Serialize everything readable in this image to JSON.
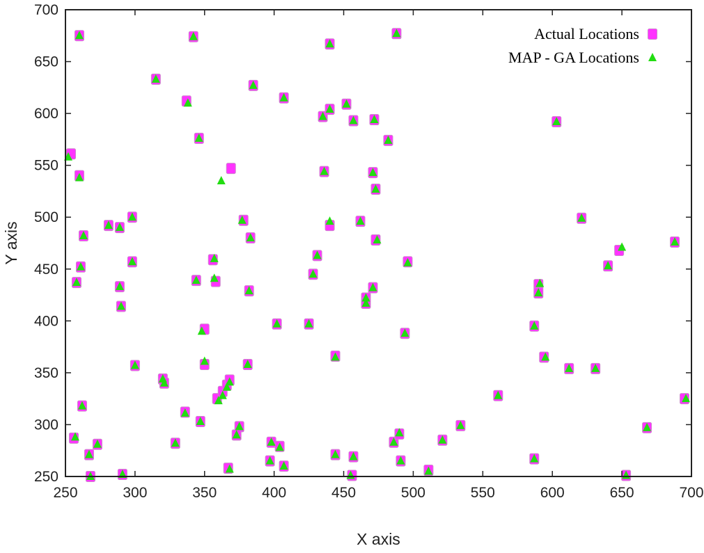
{
  "chart_data": {
    "type": "scatter",
    "xlabel": "X axis",
    "ylabel": "Y axis",
    "xlim": [
      250,
      700
    ],
    "ylim": [
      250,
      700
    ],
    "xticks": [
      250,
      300,
      350,
      400,
      450,
      500,
      550,
      600,
      650,
      700
    ],
    "yticks": [
      250,
      300,
      350,
      400,
      450,
      500,
      550,
      600,
      650,
      700
    ],
    "grid": false,
    "legend_position": "top-right",
    "series": [
      {
        "name": "Actual Locations",
        "marker": "square",
        "color": "#ff33ff",
        "points": [
          [
            260,
            675
          ],
          [
            342,
            674
          ],
          [
            315,
            633
          ],
          [
            337,
            612
          ],
          [
            346,
            576
          ],
          [
            254,
            561
          ],
          [
            260,
            540
          ],
          [
            263,
            482
          ],
          [
            261,
            452
          ],
          [
            258,
            437
          ],
          [
            281,
            492
          ],
          [
            289,
            490
          ],
          [
            298,
            500
          ],
          [
            298,
            457
          ],
          [
            289,
            433
          ],
          [
            290,
            414
          ],
          [
            300,
            357
          ],
          [
            320,
            344
          ],
          [
            321,
            340
          ],
          [
            336,
            312
          ],
          [
            329,
            282
          ],
          [
            347,
            303
          ],
          [
            344,
            439
          ],
          [
            356,
            459
          ],
          [
            358,
            438
          ],
          [
            350,
            392
          ],
          [
            350,
            358
          ],
          [
            359,
            325
          ],
          [
            363,
            332
          ],
          [
            366,
            338
          ],
          [
            368,
            343
          ],
          [
            369,
            547
          ],
          [
            385,
            627
          ],
          [
            378,
            497
          ],
          [
            383,
            480
          ],
          [
            382,
            429
          ],
          [
            381,
            358
          ],
          [
            375,
            298
          ],
          [
            373,
            290
          ],
          [
            367,
            258
          ],
          [
            398,
            283
          ],
          [
            404,
            279
          ],
          [
            407,
            260
          ],
          [
            397,
            265
          ],
          [
            402,
            397
          ],
          [
            407,
            615
          ],
          [
            425,
            397
          ],
          [
            428,
            445
          ],
          [
            431,
            463
          ],
          [
            436,
            544
          ],
          [
            435,
            597
          ],
          [
            440,
            604
          ],
          [
            440,
            667
          ],
          [
            440,
            492
          ],
          [
            452,
            609
          ],
          [
            457,
            593
          ],
          [
            462,
            496
          ],
          [
            466,
            422
          ],
          [
            466,
            417
          ],
          [
            471,
            432
          ],
          [
            472,
            594
          ],
          [
            471,
            543
          ],
          [
            473,
            527
          ],
          [
            473,
            478
          ],
          [
            482,
            574
          ],
          [
            488,
            677
          ],
          [
            444,
            366
          ],
          [
            444,
            271
          ],
          [
            457,
            269
          ],
          [
            456,
            251
          ],
          [
            486,
            283
          ],
          [
            490,
            291
          ],
          [
            491,
            265
          ],
          [
            494,
            388
          ],
          [
            496,
            457
          ],
          [
            511,
            256
          ],
          [
            521,
            285
          ],
          [
            534,
            299
          ],
          [
            561,
            328
          ],
          [
            587,
            395
          ],
          [
            587,
            267
          ],
          [
            590,
            435
          ],
          [
            590,
            427
          ],
          [
            594,
            365
          ],
          [
            603,
            592
          ],
          [
            612,
            354
          ],
          [
            621,
            499
          ],
          [
            631,
            354
          ],
          [
            640,
            453
          ],
          [
            648,
            468
          ],
          [
            653,
            251
          ],
          [
            668,
            297
          ],
          [
            688,
            476
          ],
          [
            695,
            325
          ],
          [
            256,
            287
          ],
          [
            262,
            318
          ],
          [
            267,
            271
          ],
          [
            273,
            281
          ],
          [
            268,
            250
          ],
          [
            291,
            252
          ]
        ]
      },
      {
        "name": "MAP - GA Locations",
        "marker": "triangle",
        "color": "#22dd11",
        "points": [
          [
            260,
            675
          ],
          [
            342,
            674
          ],
          [
            315,
            633
          ],
          [
            338,
            610
          ],
          [
            346,
            576
          ],
          [
            252,
            558
          ],
          [
            260,
            538
          ],
          [
            263,
            482
          ],
          [
            261,
            452
          ],
          [
            258,
            437
          ],
          [
            281,
            492
          ],
          [
            289,
            490
          ],
          [
            298,
            500
          ],
          [
            298,
            457
          ],
          [
            289,
            433
          ],
          [
            290,
            414
          ],
          [
            300,
            357
          ],
          [
            320,
            344
          ],
          [
            321,
            340
          ],
          [
            336,
            311
          ],
          [
            329,
            282
          ],
          [
            347,
            303
          ],
          [
            344,
            439
          ],
          [
            357,
            460
          ],
          [
            357,
            441
          ],
          [
            348,
            390
          ],
          [
            350,
            361
          ],
          [
            360,
            323
          ],
          [
            363,
            328
          ],
          [
            366,
            336
          ],
          [
            368,
            341
          ],
          [
            362,
            535
          ],
          [
            385,
            627
          ],
          [
            377,
            497
          ],
          [
            383,
            480
          ],
          [
            382,
            429
          ],
          [
            381,
            358
          ],
          [
            375,
            298
          ],
          [
            373,
            290
          ],
          [
            368,
            257
          ],
          [
            398,
            283
          ],
          [
            404,
            278
          ],
          [
            407,
            260
          ],
          [
            397,
            265
          ],
          [
            402,
            397
          ],
          [
            407,
            615
          ],
          [
            425,
            397
          ],
          [
            428,
            445
          ],
          [
            431,
            463
          ],
          [
            436,
            544
          ],
          [
            435,
            597
          ],
          [
            440,
            604
          ],
          [
            440,
            667
          ],
          [
            440,
            496
          ],
          [
            452,
            609
          ],
          [
            457,
            593
          ],
          [
            462,
            496
          ],
          [
            466,
            422
          ],
          [
            466,
            417
          ],
          [
            471,
            432
          ],
          [
            472,
            594
          ],
          [
            471,
            543
          ],
          [
            473,
            527
          ],
          [
            474,
            478
          ],
          [
            482,
            574
          ],
          [
            488,
            677
          ],
          [
            444,
            365
          ],
          [
            444,
            271
          ],
          [
            457,
            269
          ],
          [
            455,
            251
          ],
          [
            486,
            283
          ],
          [
            490,
            292
          ],
          [
            491,
            265
          ],
          [
            494,
            388
          ],
          [
            496,
            456
          ],
          [
            511,
            255
          ],
          [
            521,
            285
          ],
          [
            534,
            299
          ],
          [
            561,
            328
          ],
          [
            587,
            395
          ],
          [
            587,
            267
          ],
          [
            591,
            436
          ],
          [
            590,
            427
          ],
          [
            595,
            365
          ],
          [
            603,
            592
          ],
          [
            612,
            354
          ],
          [
            621,
            499
          ],
          [
            631,
            354
          ],
          [
            640,
            453
          ],
          [
            650,
            471
          ],
          [
            653,
            251
          ],
          [
            668,
            297
          ],
          [
            688,
            476
          ],
          [
            696,
            325
          ],
          [
            257,
            288
          ],
          [
            262,
            318
          ],
          [
            267,
            271
          ],
          [
            273,
            281
          ],
          [
            268,
            250
          ],
          [
            291,
            252
          ]
        ]
      }
    ]
  }
}
